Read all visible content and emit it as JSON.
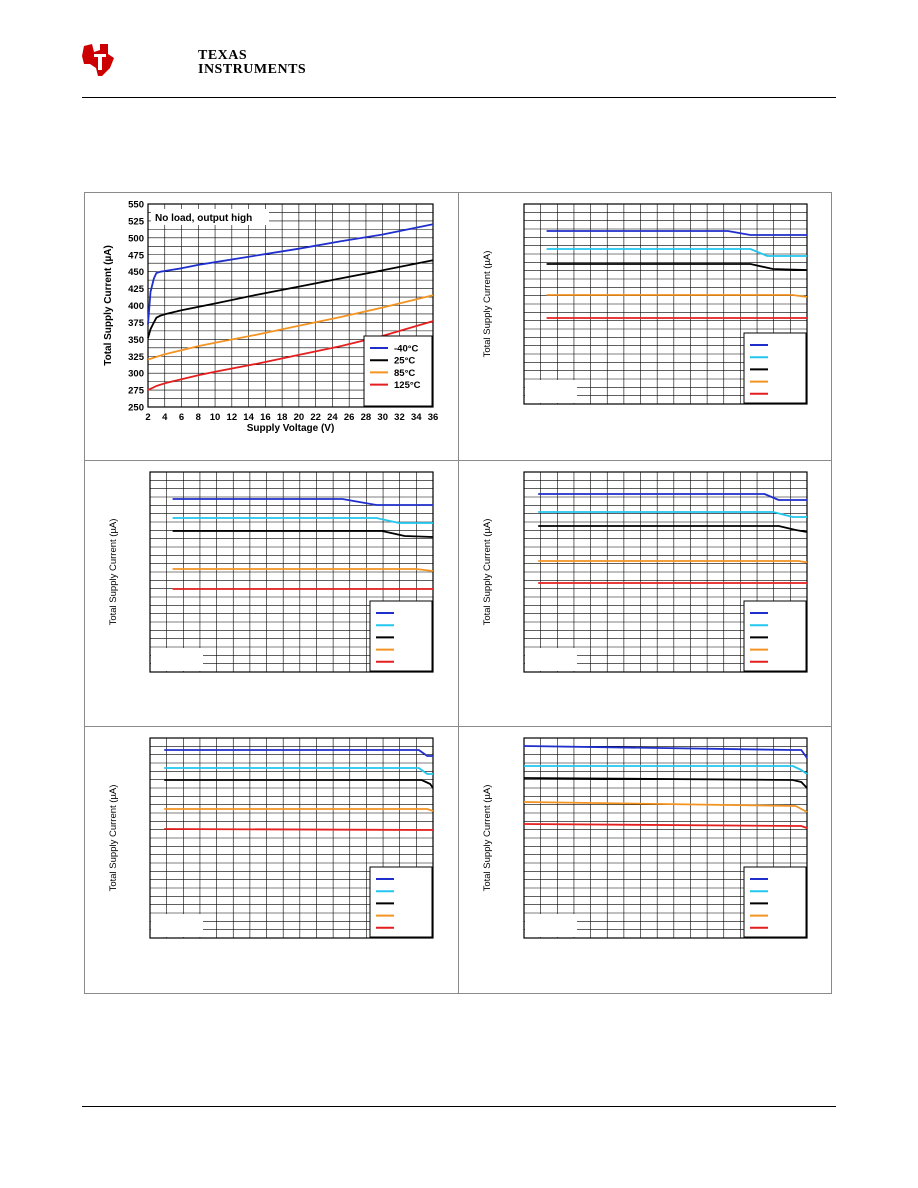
{
  "header": {
    "logo_line1": "TEXAS",
    "logo_line2": "INSTRUMENTS"
  },
  "colors": {
    "blue": "#1f2fcc",
    "cyan": "#22c6ee",
    "black": "#000000",
    "orange": "#f39322",
    "red": "#e41f1f",
    "grid": "#000000"
  },
  "chart_data": [
    {
      "type": "line",
      "annotation": "No load, output high",
      "xlabel": "Supply Voltage (V)",
      "ylabel": "Total Supply Current (µA)",
      "xlim": [
        2,
        36
      ],
      "ylim": [
        250,
        550
      ],
      "xticks": [
        2,
        4,
        6,
        8,
        10,
        12,
        14,
        16,
        18,
        20,
        22,
        24,
        26,
        28,
        30,
        32,
        34,
        36
      ],
      "yticks": [
        250,
        275,
        300,
        325,
        350,
        375,
        400,
        425,
        450,
        475,
        500,
        525,
        550
      ],
      "legend_position": "bottom-right",
      "series": [
        {
          "name": "-40°C",
          "color": "#1f2fcc",
          "x": [
            2,
            2.3,
            2.7,
            3,
            3.5,
            4,
            5,
            6,
            8,
            10,
            15,
            20,
            25,
            30,
            36
          ],
          "y": [
            372,
            420,
            440,
            448,
            450,
            451,
            453,
            455,
            460,
            464,
            474,
            484,
            495,
            505,
            520
          ]
        },
        {
          "name": "25°C",
          "color": "#000000",
          "x": [
            2,
            2.3,
            2.7,
            3,
            3.5,
            4,
            5,
            6,
            8,
            10,
            15,
            20,
            25,
            30,
            36
          ],
          "y": [
            352,
            365,
            375,
            382,
            385,
            387,
            390,
            393,
            398,
            403,
            416,
            428,
            440,
            452,
            467
          ]
        },
        {
          "name": "85°C",
          "color": "#f39322",
          "x": [
            2,
            3,
            4,
            5,
            6,
            8,
            10,
            15,
            20,
            25,
            30,
            36
          ],
          "y": [
            320,
            324,
            328,
            331,
            334,
            340,
            345,
            357,
            370,
            383,
            397,
            415
          ]
        },
        {
          "name": "125°C",
          "color": "#e41f1f",
          "x": [
            2,
            3,
            4,
            5,
            6,
            8,
            10,
            15,
            20,
            25,
            30,
            36
          ],
          "y": [
            275,
            281,
            285,
            288,
            291,
            297,
            302,
            314,
            327,
            340,
            355,
            377
          ]
        }
      ]
    },
    {
      "type": "line",
      "ylabel": "Total Supply Current (µA)",
      "xlim": [
        0,
        1
      ],
      "ylim": [
        0,
        1
      ],
      "legend_position": "bottom-right",
      "series": [
        {
          "color": "#1f2fcc",
          "x": [
            0.08,
            0.72,
            0.8,
            1.0
          ],
          "y": [
            0.865,
            0.865,
            0.845,
            0.845
          ]
        },
        {
          "color": "#22c6ee",
          "x": [
            0.08,
            0.8,
            0.86,
            1.0
          ],
          "y": [
            0.775,
            0.775,
            0.74,
            0.74
          ]
        },
        {
          "color": "#000000",
          "x": [
            0.08,
            0.8,
            0.88,
            1.0
          ],
          "y": [
            0.7,
            0.7,
            0.675,
            0.67
          ]
        },
        {
          "color": "#f39322",
          "x": [
            0.08,
            0.95,
            1.0
          ],
          "y": [
            0.545,
            0.545,
            0.535
          ]
        },
        {
          "color": "#e41f1f",
          "x": [
            0.08,
            1.0
          ],
          "y": [
            0.43,
            0.43
          ]
        }
      ]
    },
    {
      "type": "line",
      "ylabel": "Total Supply Current (µA)",
      "xlim": [
        0,
        1
      ],
      "ylim": [
        0,
        1
      ],
      "legend_position": "bottom-right",
      "series": [
        {
          "color": "#1f2fcc",
          "x": [
            0.08,
            0.68,
            0.8,
            1.0
          ],
          "y": [
            0.865,
            0.865,
            0.835,
            0.835
          ]
        },
        {
          "color": "#22c6ee",
          "x": [
            0.08,
            0.8,
            0.88,
            1.0
          ],
          "y": [
            0.77,
            0.77,
            0.745,
            0.745
          ]
        },
        {
          "color": "#000000",
          "x": [
            0.08,
            0.82,
            0.9,
            1.0
          ],
          "y": [
            0.705,
            0.705,
            0.68,
            0.675
          ]
        },
        {
          "color": "#f39322",
          "x": [
            0.08,
            0.94,
            1.0
          ],
          "y": [
            0.515,
            0.515,
            0.505
          ]
        },
        {
          "color": "#e41f1f",
          "x": [
            0.08,
            1.0
          ],
          "y": [
            0.415,
            0.415
          ]
        }
      ]
    },
    {
      "type": "line",
      "ylabel": "Total Supply Current (µA)",
      "xlim": [
        0,
        1
      ],
      "ylim": [
        0,
        1
      ],
      "legend_position": "bottom-right",
      "series": [
        {
          "color": "#1f2fcc",
          "x": [
            0.05,
            0.85,
            0.9,
            1.0
          ],
          "y": [
            0.89,
            0.89,
            0.86,
            0.86
          ]
        },
        {
          "color": "#22c6ee",
          "x": [
            0.05,
            0.88,
            0.95,
            1.0
          ],
          "y": [
            0.8,
            0.8,
            0.775,
            0.775
          ]
        },
        {
          "color": "#000000",
          "x": [
            0.05,
            0.9,
            0.96,
            1.0
          ],
          "y": [
            0.73,
            0.73,
            0.71,
            0.7
          ]
        },
        {
          "color": "#f39322",
          "x": [
            0.05,
            0.97,
            1.0
          ],
          "y": [
            0.555,
            0.555,
            0.548
          ]
        },
        {
          "color": "#e41f1f",
          "x": [
            0.05,
            1.0
          ],
          "y": [
            0.445,
            0.445
          ]
        }
      ]
    },
    {
      "type": "line",
      "ylabel": "Total Supply Current (µA)",
      "xlim": [
        0,
        1
      ],
      "ylim": [
        0,
        1
      ],
      "legend_position": "bottom-right",
      "series": [
        {
          "color": "#1f2fcc",
          "x": [
            0.05,
            0.95,
            0.98,
            1.0
          ],
          "y": [
            0.94,
            0.94,
            0.91,
            0.91
          ]
        },
        {
          "color": "#22c6ee",
          "x": [
            0.05,
            0.95,
            0.98,
            1.0
          ],
          "y": [
            0.85,
            0.85,
            0.82,
            0.82
          ]
        },
        {
          "color": "#000000",
          "x": [
            0.05,
            0.96,
            0.99,
            1.0
          ],
          "y": [
            0.79,
            0.79,
            0.77,
            0.75
          ]
        },
        {
          "color": "#f39322",
          "x": [
            0.05,
            0.98,
            1.0
          ],
          "y": [
            0.645,
            0.645,
            0.635
          ]
        },
        {
          "color": "#e41f1f",
          "x": [
            0.05,
            1.0
          ],
          "y": [
            0.545,
            0.54
          ]
        }
      ]
    },
    {
      "type": "line",
      "ylabel": "Total Supply Current (µA)",
      "xlim": [
        0,
        1
      ],
      "ylim": [
        0,
        1
      ],
      "legend_position": "bottom-right",
      "series": [
        {
          "color": "#1f2fcc",
          "x": [
            0.0,
            0.95,
            0.98,
            1.0
          ],
          "y": [
            0.96,
            0.94,
            0.94,
            0.9
          ]
        },
        {
          "color": "#22c6ee",
          "x": [
            0.0,
            0.95,
            0.98,
            1.0
          ],
          "y": [
            0.86,
            0.86,
            0.84,
            0.82
          ]
        },
        {
          "color": "#000000",
          "x": [
            0.0,
            0.95,
            0.98,
            1.0
          ],
          "y": [
            0.8,
            0.79,
            0.78,
            0.75
          ]
        },
        {
          "color": "#f39322",
          "x": [
            0.0,
            0.96,
            1.0
          ],
          "y": [
            0.68,
            0.66,
            0.63
          ]
        },
        {
          "color": "#e41f1f",
          "x": [
            0.0,
            0.98,
            1.0
          ],
          "y": [
            0.57,
            0.56,
            0.55
          ]
        }
      ]
    }
  ]
}
